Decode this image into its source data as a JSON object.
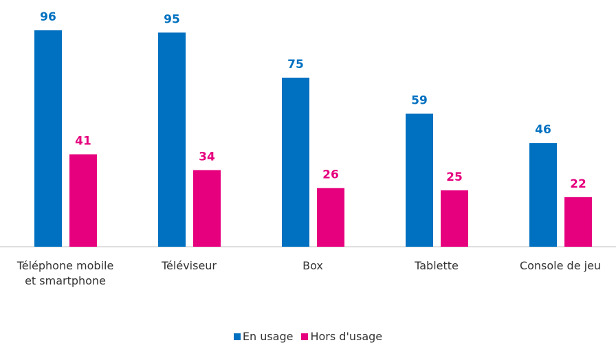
{
  "chart_data": {
    "type": "bar",
    "categories": [
      "Téléphone mobile et smartphone",
      "Téléviseur",
      "Box",
      "Tablette",
      "Console de jeu"
    ],
    "series": [
      {
        "name": "En usage",
        "color": "#0070c0",
        "values": [
          96,
          95,
          75,
          59,
          46
        ]
      },
      {
        "name": "Hors d'usage",
        "color": "#e6007e",
        "values": [
          41,
          34,
          26,
          25,
          22
        ]
      }
    ],
    "ylim": [
      0,
      100
    ],
    "legend": "bottom"
  }
}
